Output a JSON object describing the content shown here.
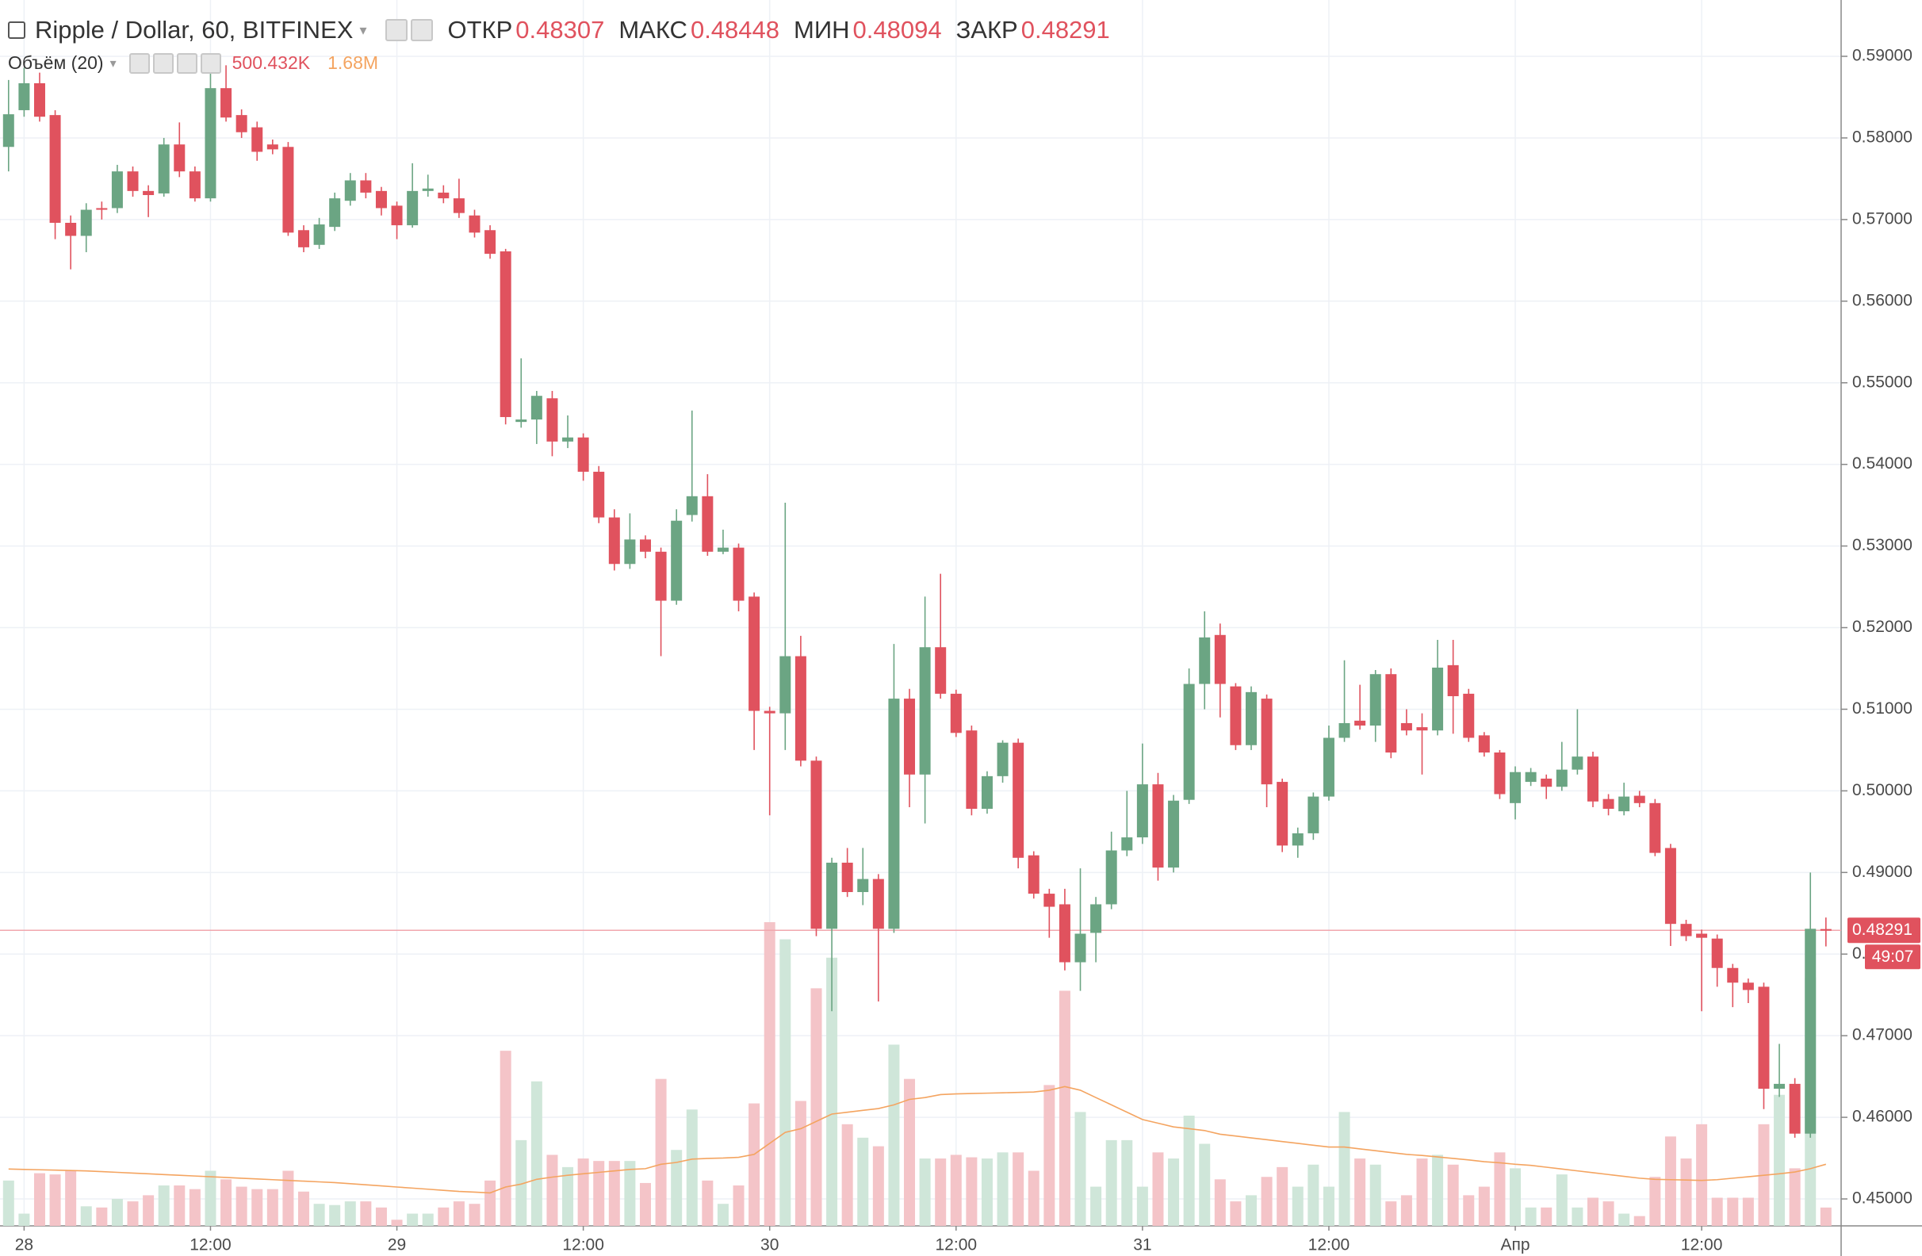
{
  "chart_data": {
    "type": "candlestick",
    "title": "Ripple / Dollar, 60, BITFINEX",
    "ohlc_labels": {
      "open": "ОТКР",
      "high": "МАКС",
      "low": "МИН",
      "close": "ЗАКР"
    },
    "volume_indicator": "Объём (20)",
    "volume_last_label": "500.432K",
    "volume_ma_last_label": "1.68M",
    "countdown": "49:07",
    "up_color": "#6ba583",
    "down_color": "#e0525e",
    "volume_up_color": "#cfe6d9",
    "volume_down_color": "#f4c4c8",
    "ma_color": "#f4a460",
    "grid": true,
    "ylim": [
      0.4467,
      0.5969
    ],
    "yticks": [
      {
        "value": 0.45,
        "label": "0.45000"
      },
      {
        "value": 0.46,
        "label": "0.46000"
      },
      {
        "value": 0.47,
        "label": "0.47000"
      },
      {
        "value": 0.48,
        "label": "0.48000"
      },
      {
        "value": 0.49,
        "label": "0.49000"
      },
      {
        "value": 0.5,
        "label": "0.50000"
      },
      {
        "value": 0.51,
        "label": "0.51000"
      },
      {
        "value": 0.52,
        "label": "0.52000"
      },
      {
        "value": 0.53,
        "label": "0.53000"
      },
      {
        "value": 0.54,
        "label": "0.54000"
      },
      {
        "value": 0.55,
        "label": "0.55000"
      },
      {
        "value": 0.56,
        "label": "0.56000"
      },
      {
        "value": 0.57,
        "label": "0.57000"
      },
      {
        "value": 0.58,
        "label": "0.58000"
      },
      {
        "value": 0.59,
        "label": "0.59000"
      }
    ],
    "categories": [
      null,
      "28",
      null,
      null,
      null,
      null,
      null,
      null,
      null,
      null,
      null,
      null,
      null,
      "12:00",
      null,
      null,
      null,
      null,
      null,
      null,
      null,
      null,
      null,
      null,
      null,
      "29",
      null,
      null,
      null,
      null,
      null,
      null,
      null,
      null,
      null,
      null,
      null,
      "12:00",
      null,
      null,
      null,
      null,
      null,
      null,
      null,
      null,
      null,
      null,
      null,
      "30",
      null,
      null,
      null,
      null,
      null,
      null,
      null,
      null,
      null,
      null,
      null,
      "12:00",
      null,
      null,
      null,
      null,
      null,
      null,
      null,
      null,
      null,
      null,
      null,
      "31",
      null,
      null,
      null,
      null,
      null,
      null,
      null,
      null,
      null,
      null,
      null,
      "12:00",
      null,
      null,
      null,
      null,
      null,
      null,
      null,
      null,
      null,
      null,
      null,
      "Апр",
      null,
      null,
      null,
      null,
      null,
      null,
      null,
      null,
      null,
      null,
      null,
      "12:00",
      null,
      null,
      null,
      null,
      null,
      null,
      null,
      null
    ],
    "open": [
      0.5789,
      0.5834,
      0.5867,
      0.5828,
      0.5696,
      0.568,
      0.5714,
      0.5714,
      0.5759,
      0.5735,
      0.5732,
      0.5792,
      0.5759,
      0.5726,
      0.5861,
      0.5828,
      0.5813,
      0.5792,
      0.5789,
      0.5687,
      0.5669,
      0.5691,
      0.5723,
      0.5748,
      0.5735,
      0.5717,
      0.5693,
      0.5735,
      0.5733,
      0.5726,
      0.5705,
      0.5687,
      0.5661,
      0.5452,
      0.5455,
      0.5481,
      0.5428,
      0.5433,
      0.5391,
      0.5335,
      0.5278,
      0.5308,
      0.5293,
      0.5233,
      0.5338,
      0.5361,
      0.5293,
      0.5298,
      0.5238,
      0.5098,
      0.5095,
      0.5165,
      0.5037,
      0.4831,
      0.4912,
      0.4876,
      0.4892,
      0.4831,
      0.5113,
      0.502,
      0.5176,
      0.5119,
      0.5074,
      0.4978,
      0.5018,
      0.5059,
      0.4921,
      0.4874,
      0.4861,
      0.479,
      0.4826,
      0.4861,
      0.4927,
      0.4943,
      0.5008,
      0.4906,
      0.4989,
      0.5131,
      0.5191,
      0.5128,
      0.5056,
      0.5113,
      0.5011,
      0.4933,
      0.4948,
      0.4993,
      0.5065,
      0.5086,
      0.508,
      0.5143,
      0.5083,
      0.5078,
      0.5074,
      0.5154,
      0.5119,
      0.5068,
      0.5047,
      0.4985,
      0.5011,
      0.5015,
      0.5005,
      0.5026,
      0.5042,
      0.499,
      0.4975,
      0.4994,
      0.4985,
      0.493,
      0.4837,
      0.4825,
      0.4819,
      0.4783,
      0.4765,
      0.476,
      0.4635,
      0.4641,
      0.458,
      0.48307
    ],
    "close": [
      0.5829,
      0.5867,
      0.5826,
      0.5696,
      0.568,
      0.5712,
      0.5712,
      0.5759,
      0.5735,
      0.573,
      0.5792,
      0.5759,
      0.5726,
      0.5861,
      0.5825,
      0.5807,
      0.5783,
      0.5786,
      0.5684,
      0.5666,
      0.5694,
      0.5726,
      0.5748,
      0.5733,
      0.5714,
      0.5693,
      0.5735,
      0.5738,
      0.5726,
      0.5708,
      0.5684,
      0.5658,
      0.5458,
      0.5455,
      0.5484,
      0.5428,
      0.5433,
      0.5391,
      0.5335,
      0.5278,
      0.5308,
      0.5293,
      0.5233,
      0.5331,
      0.5361,
      0.5293,
      0.5298,
      0.5233,
      0.5098,
      0.5095,
      0.5165,
      0.5037,
      0.4831,
      0.4912,
      0.4876,
      0.4892,
      0.4831,
      0.5113,
      0.502,
      0.5176,
      0.5119,
      0.5071,
      0.4978,
      0.5018,
      0.5059,
      0.4918,
      0.4874,
      0.4858,
      0.479,
      0.4825,
      0.4861,
      0.4927,
      0.4943,
      0.5008,
      0.4906,
      0.4988,
      0.5131,
      0.5188,
      0.5131,
      0.5056,
      0.5121,
      0.5008,
      0.4933,
      0.4948,
      0.4993,
      0.5065,
      0.5083,
      0.508,
      0.5143,
      0.5047,
      0.5074,
      0.5074,
      0.5151,
      0.5116,
      0.5065,
      0.5047,
      0.4996,
      0.5023,
      0.5023,
      0.5005,
      0.5026,
      0.5042,
      0.4987,
      0.4978,
      0.4993,
      0.4985,
      0.4924,
      0.4837,
      0.4822,
      0.482,
      0.4783,
      0.4765,
      0.4756,
      0.4635,
      0.4641,
      0.458,
      0.4831,
      0.48291
    ],
    "high": [
      0.5871,
      0.5886,
      0.588,
      0.5834,
      0.5705,
      0.572,
      0.5722,
      0.5767,
      0.5765,
      0.5742,
      0.58,
      0.5819,
      0.5765,
      0.5889,
      0.5889,
      0.5835,
      0.582,
      0.5798,
      0.5795,
      0.5693,
      0.5702,
      0.5733,
      0.5757,
      0.5757,
      0.574,
      0.5722,
      0.5769,
      0.5755,
      0.5742,
      0.575,
      0.5712,
      0.5693,
      0.5664,
      0.553,
      0.549,
      0.549,
      0.546,
      0.5438,
      0.5398,
      0.5345,
      0.534,
      0.5313,
      0.5298,
      0.5345,
      0.5466,
      0.5388,
      0.532,
      0.5303,
      0.5243,
      0.5103,
      0.5353,
      0.519,
      0.5042,
      0.4918,
      0.493,
      0.493,
      0.4898,
      0.518,
      0.5125,
      0.5238,
      0.5266,
      0.5124,
      0.508,
      0.5024,
      0.5062,
      0.5064,
      0.4926,
      0.488,
      0.488,
      0.4905,
      0.487,
      0.495,
      0.5,
      0.5058,
      0.5022,
      0.4995,
      0.515,
      0.522,
      0.5205,
      0.5132,
      0.5128,
      0.5118,
      0.5015,
      0.4955,
      0.4998,
      0.508,
      0.516,
      0.513,
      0.5148,
      0.515,
      0.51,
      0.5095,
      0.5185,
      0.5185,
      0.5125,
      0.5072,
      0.505,
      0.503,
      0.5028,
      0.502,
      0.506,
      0.51,
      0.5048,
      0.4996,
      0.501,
      0.5,
      0.499,
      0.4935,
      0.4842,
      0.483,
      0.4824,
      0.4788,
      0.477,
      0.4765,
      0.469,
      0.4648,
      0.49,
      0.48448
    ],
    "low": [
      0.5759,
      0.5826,
      0.582,
      0.5676,
      0.5639,
      0.566,
      0.57,
      0.5708,
      0.5728,
      0.5703,
      0.5728,
      0.5752,
      0.5722,
      0.5722,
      0.582,
      0.58,
      0.5772,
      0.578,
      0.568,
      0.566,
      0.5664,
      0.5686,
      0.5717,
      0.5726,
      0.5705,
      0.5676,
      0.569,
      0.5728,
      0.572,
      0.5702,
      0.5678,
      0.5652,
      0.5449,
      0.5445,
      0.5425,
      0.541,
      0.542,
      0.538,
      0.5328,
      0.527,
      0.5272,
      0.5285,
      0.5165,
      0.5228,
      0.533,
      0.5288,
      0.529,
      0.522,
      0.505,
      0.497,
      0.505,
      0.503,
      0.4822,
      0.473,
      0.487,
      0.486,
      0.4742,
      0.4826,
      0.498,
      0.496,
      0.5113,
      0.5066,
      0.497,
      0.4972,
      0.501,
      0.4905,
      0.4868,
      0.482,
      0.478,
      0.4755,
      0.479,
      0.4855,
      0.492,
      0.4935,
      0.489,
      0.49,
      0.4984,
      0.51,
      0.509,
      0.505,
      0.505,
      0.498,
      0.4925,
      0.4918,
      0.494,
      0.4988,
      0.506,
      0.5075,
      0.506,
      0.504,
      0.5068,
      0.502,
      0.5068,
      0.507,
      0.506,
      0.5042,
      0.499,
      0.4965,
      0.5006,
      0.499,
      0.5,
      0.502,
      0.498,
      0.497,
      0.497,
      0.498,
      0.492,
      0.481,
      0.4816,
      0.473,
      0.476,
      0.4735,
      0.474,
      0.461,
      0.4625,
      0.4575,
      0.4575,
      0.48094
    ],
    "volume": [
      1236000,
      334000,
      1436000,
      1403000,
      1503000,
      534000,
      501000,
      735000,
      668000,
      835000,
      1102000,
      1102000,
      1002000,
      1503000,
      1269000,
      1069000,
      1002000,
      1002000,
      1503000,
      935000,
      601000,
      568000,
      668000,
      668000,
      501000,
      167000,
      334000,
      334000,
      501000,
      668000,
      601000,
      1236000,
      4776000,
      2338000,
      3941000,
      1937000,
      1603000,
      1837000,
      1770000,
      1770000,
      1770000,
      1169000,
      4008000,
      2071000,
      3173000,
      1236000,
      601000,
      1102000,
      3340000,
      8283000,
      7816000,
      3407000,
      6480000,
      7315000,
      2772000,
      2405000,
      2171000,
      4943000,
      4008000,
      1837000,
      1837000,
      1937000,
      1870000,
      1837000,
      2004000,
      2004000,
      1503000,
      3841000,
      6413000,
      3106000,
      1069000,
      2338000,
      2338000,
      1069000,
      2004000,
      1837000,
      3006000,
      2238000,
      1269000,
      668000,
      835000,
      1336000,
      1603000,
      1069000,
      1670000,
      1069000,
      3106000,
      1837000,
      1670000,
      668000,
      835000,
      1837000,
      1937000,
      1670000,
      835000,
      1069000,
      2004000,
      1570000,
      501000,
      501000,
      1403000,
      501000,
      768000,
      668000,
      334000,
      267000,
      1336000,
      2438000,
      1837000,
      2772000,
      768000,
      768000,
      768000,
      2772000,
      3574000,
      1570000,
      6780000,
      500432
    ],
    "volume_ma": [
      1550000,
      1540000,
      1530000,
      1520000,
      1510000,
      1500000,
      1480000,
      1460000,
      1440000,
      1420000,
      1400000,
      1380000,
      1360000,
      1340000,
      1320000,
      1300000,
      1280000,
      1260000,
      1240000,
      1220000,
      1200000,
      1180000,
      1150000,
      1120000,
      1090000,
      1060000,
      1030000,
      1000000,
      970000,
      940000,
      920000,
      900000,
      1060000,
      1140000,
      1270000,
      1330000,
      1380000,
      1420000,
      1460000,
      1500000,
      1540000,
      1560000,
      1680000,
      1730000,
      1820000,
      1840000,
      1850000,
      1870000,
      1950000,
      2250000,
      2550000,
      2650000,
      2850000,
      3050000,
      3100000,
      3150000,
      3200000,
      3300000,
      3450000,
      3500000,
      3580000,
      3600000,
      3610000,
      3620000,
      3630000,
      3640000,
      3650000,
      3700000,
      3800000,
      3700000,
      3500000,
      3300000,
      3100000,
      2900000,
      2800000,
      2700000,
      2650000,
      2600000,
      2500000,
      2450000,
      2400000,
      2350000,
      2300000,
      2250000,
      2200000,
      2150000,
      2150000,
      2100000,
      2050000,
      2000000,
      1950000,
      1920000,
      1880000,
      1840000,
      1800000,
      1750000,
      1720000,
      1680000,
      1650000,
      1600000,
      1550000,
      1500000,
      1450000,
      1400000,
      1350000,
      1300000,
      1270000,
      1260000,
      1250000,
      1240000,
      1260000,
      1300000,
      1340000,
      1380000,
      1420000,
      1470000,
      1560000,
      1680000
    ]
  }
}
